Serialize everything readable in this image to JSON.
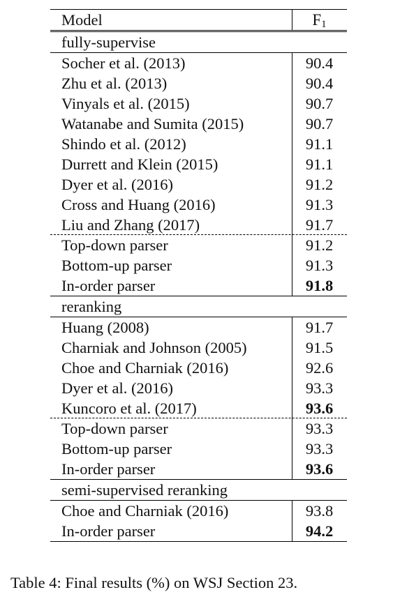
{
  "table": {
    "header": {
      "model": "Model",
      "f_main": "F",
      "f_sub": "1"
    },
    "sections": [
      {
        "title": "fully-supervise",
        "rows": [
          {
            "model": "Socher et al. (2013)",
            "f1": "90.4"
          },
          {
            "model": "Zhu et al. (2013)",
            "f1": "90.4"
          },
          {
            "model": "Vinyals et al. (2015)",
            "f1": "90.7"
          },
          {
            "model": "Watanabe and Sumita (2015)",
            "f1": "90.7"
          },
          {
            "model": "Shindo et al. (2012)",
            "f1": "91.1"
          },
          {
            "model": "Durrett and Klein (2015)",
            "f1": "91.1"
          },
          {
            "model": "Dyer et al. (2016)",
            "f1": "91.2"
          },
          {
            "model": "Cross and Huang (2016)",
            "f1": "91.3"
          },
          {
            "model": "Liu and Zhang (2017)",
            "f1": "91.7"
          },
          {
            "model": "Top-down parser",
            "f1": "91.2",
            "dash": true
          },
          {
            "model": "Bottom-up parser",
            "f1": "91.3"
          },
          {
            "model": "In-order parser",
            "f1": "91.8",
            "bold": true
          }
        ]
      },
      {
        "title": "reranking",
        "rows": [
          {
            "model": "Huang (2008)",
            "f1": "91.7"
          },
          {
            "model": "Charniak and Johnson (2005)",
            "f1": "91.5"
          },
          {
            "model": "Choe and Charniak (2016)",
            "f1": "92.6"
          },
          {
            "model": "Dyer et al. (2016)",
            "f1": "93.3"
          },
          {
            "model": "Kuncoro et al. (2017)",
            "f1": "93.6",
            "bold": true
          },
          {
            "model": "Top-down parser",
            "f1": "93.3",
            "dash": true
          },
          {
            "model": "Bottom-up parser",
            "f1": "93.3"
          },
          {
            "model": "In-order parser",
            "f1": "93.6",
            "bold": true
          }
        ]
      },
      {
        "title": "semi-supervised reranking",
        "rows": [
          {
            "model": "Choe and Charniak (2016)",
            "f1": "93.8"
          },
          {
            "model": "In-order parser",
            "f1": "94.2",
            "bold": true
          }
        ]
      }
    ]
  },
  "caption": "Table 4:  Final results (%) on WSJ Section 23."
}
